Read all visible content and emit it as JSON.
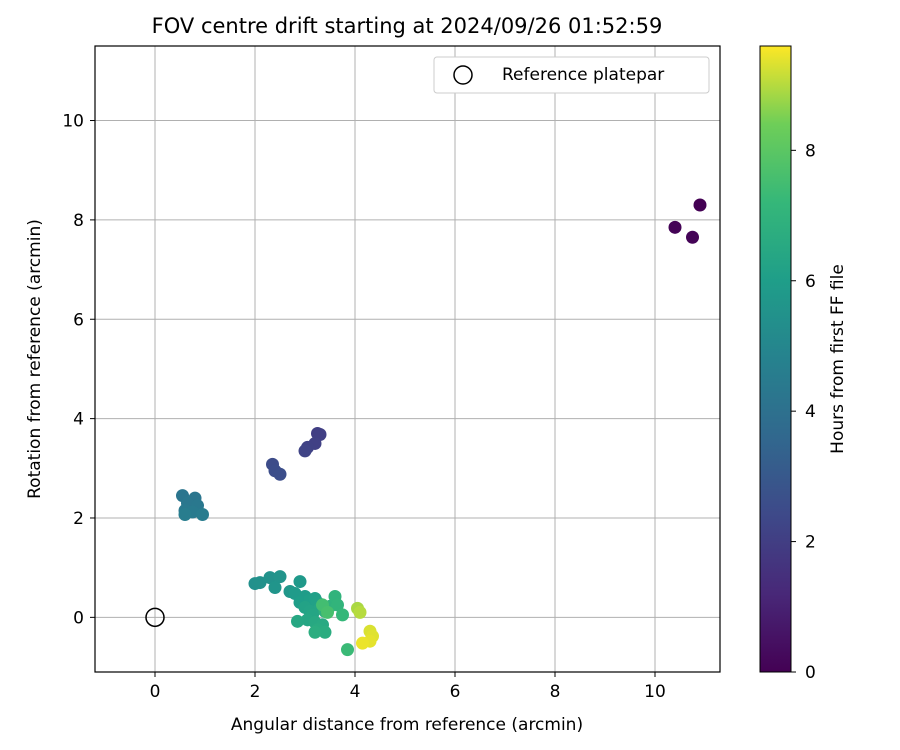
{
  "chart_data": {
    "type": "scatter",
    "title": "FOV centre drift starting at 2024/09/26 01:52:59",
    "xlabel": "Angular distance from reference (arcmin)",
    "ylabel": "Rotation from reference (arcmin)",
    "xlim": [
      -1.2,
      11.3
    ],
    "ylim": [
      -1.1,
      11.5
    ],
    "xticks": [
      0,
      2,
      4,
      6,
      8,
      10
    ],
    "yticks": [
      0,
      2,
      4,
      6,
      8,
      10
    ],
    "grid": true,
    "legend": {
      "position": "top-right",
      "entries": [
        "Reference platepar"
      ]
    },
    "reference_point": {
      "x": 0,
      "y": 0,
      "label": "Reference platepar"
    },
    "colorbar": {
      "label": "Hours from first FF file",
      "colormap": "viridis",
      "range": [
        0,
        9.6
      ],
      "ticks": [
        0,
        2,
        4,
        6,
        8
      ]
    },
    "points": [
      {
        "x": 10.9,
        "y": 8.3,
        "c": 0.0
      },
      {
        "x": 10.4,
        "y": 7.85,
        "c": 0.05
      },
      {
        "x": 10.75,
        "y": 7.65,
        "c": 0.1
      },
      {
        "x": 3.25,
        "y": 3.7,
        "c": 2.0
      },
      {
        "x": 3.3,
        "y": 3.68,
        "c": 2.05
      },
      {
        "x": 3.2,
        "y": 3.5,
        "c": 2.1
      },
      {
        "x": 3.05,
        "y": 3.42,
        "c": 2.15
      },
      {
        "x": 3.0,
        "y": 3.35,
        "c": 2.2
      },
      {
        "x": 2.35,
        "y": 3.08,
        "c": 2.5
      },
      {
        "x": 2.4,
        "y": 2.95,
        "c": 2.55
      },
      {
        "x": 2.5,
        "y": 2.88,
        "c": 2.6
      },
      {
        "x": 0.55,
        "y": 2.45,
        "c": 4.2
      },
      {
        "x": 0.8,
        "y": 2.4,
        "c": 4.25
      },
      {
        "x": 0.65,
        "y": 2.3,
        "c": 4.3
      },
      {
        "x": 0.85,
        "y": 2.25,
        "c": 4.35
      },
      {
        "x": 0.6,
        "y": 2.15,
        "c": 4.4
      },
      {
        "x": 0.75,
        "y": 2.12,
        "c": 4.45
      },
      {
        "x": 0.95,
        "y": 2.07,
        "c": 4.5
      },
      {
        "x": 0.6,
        "y": 2.07,
        "c": 4.55
      },
      {
        "x": 2.0,
        "y": 0.68,
        "c": 5.4
      },
      {
        "x": 2.1,
        "y": 0.7,
        "c": 5.45
      },
      {
        "x": 2.3,
        "y": 0.8,
        "c": 5.5
      },
      {
        "x": 2.5,
        "y": 0.82,
        "c": 5.55
      },
      {
        "x": 2.4,
        "y": 0.6,
        "c": 5.6
      },
      {
        "x": 2.7,
        "y": 0.52,
        "c": 5.7
      },
      {
        "x": 2.9,
        "y": 0.72,
        "c": 5.8
      },
      {
        "x": 2.8,
        "y": 0.48,
        "c": 5.85
      },
      {
        "x": 3.0,
        "y": 0.42,
        "c": 5.9
      },
      {
        "x": 2.9,
        "y": 0.3,
        "c": 6.0
      },
      {
        "x": 3.1,
        "y": 0.35,
        "c": 6.05
      },
      {
        "x": 3.2,
        "y": 0.38,
        "c": 6.1
      },
      {
        "x": 3.25,
        "y": 0.3,
        "c": 6.15
      },
      {
        "x": 3.0,
        "y": 0.2,
        "c": 6.2
      },
      {
        "x": 3.1,
        "y": 0.12,
        "c": 6.25
      },
      {
        "x": 3.3,
        "y": 0.18,
        "c": 6.3
      },
      {
        "x": 3.15,
        "y": 0.05,
        "c": 6.35
      },
      {
        "x": 3.05,
        "y": -0.05,
        "c": 6.4
      },
      {
        "x": 2.85,
        "y": -0.08,
        "c": 6.45
      },
      {
        "x": 3.2,
        "y": -0.1,
        "c": 6.5
      },
      {
        "x": 3.35,
        "y": -0.15,
        "c": 6.55
      },
      {
        "x": 3.25,
        "y": -0.25,
        "c": 6.6
      },
      {
        "x": 3.4,
        "y": -0.3,
        "c": 6.65
      },
      {
        "x": 3.2,
        "y": -0.3,
        "c": 6.7
      },
      {
        "x": 3.4,
        "y": 0.12,
        "c": 6.8
      },
      {
        "x": 3.5,
        "y": 0.22,
        "c": 6.9
      },
      {
        "x": 3.6,
        "y": 0.42,
        "c": 7.0
      },
      {
        "x": 3.65,
        "y": 0.25,
        "c": 7.05
      },
      {
        "x": 3.75,
        "y": 0.05,
        "c": 7.2
      },
      {
        "x": 3.85,
        "y": -0.65,
        "c": 7.3
      },
      {
        "x": 3.35,
        "y": 0.25,
        "c": 7.5
      },
      {
        "x": 3.45,
        "y": 0.1,
        "c": 7.6
      },
      {
        "x": 4.05,
        "y": 0.18,
        "c": 8.9
      },
      {
        "x": 4.1,
        "y": 0.1,
        "c": 9.0
      },
      {
        "x": 4.3,
        "y": -0.28,
        "c": 9.3
      },
      {
        "x": 4.35,
        "y": -0.38,
        "c": 9.35
      },
      {
        "x": 4.3,
        "y": -0.48,
        "c": 9.4
      },
      {
        "x": 4.15,
        "y": -0.52,
        "c": 9.45
      }
    ]
  }
}
